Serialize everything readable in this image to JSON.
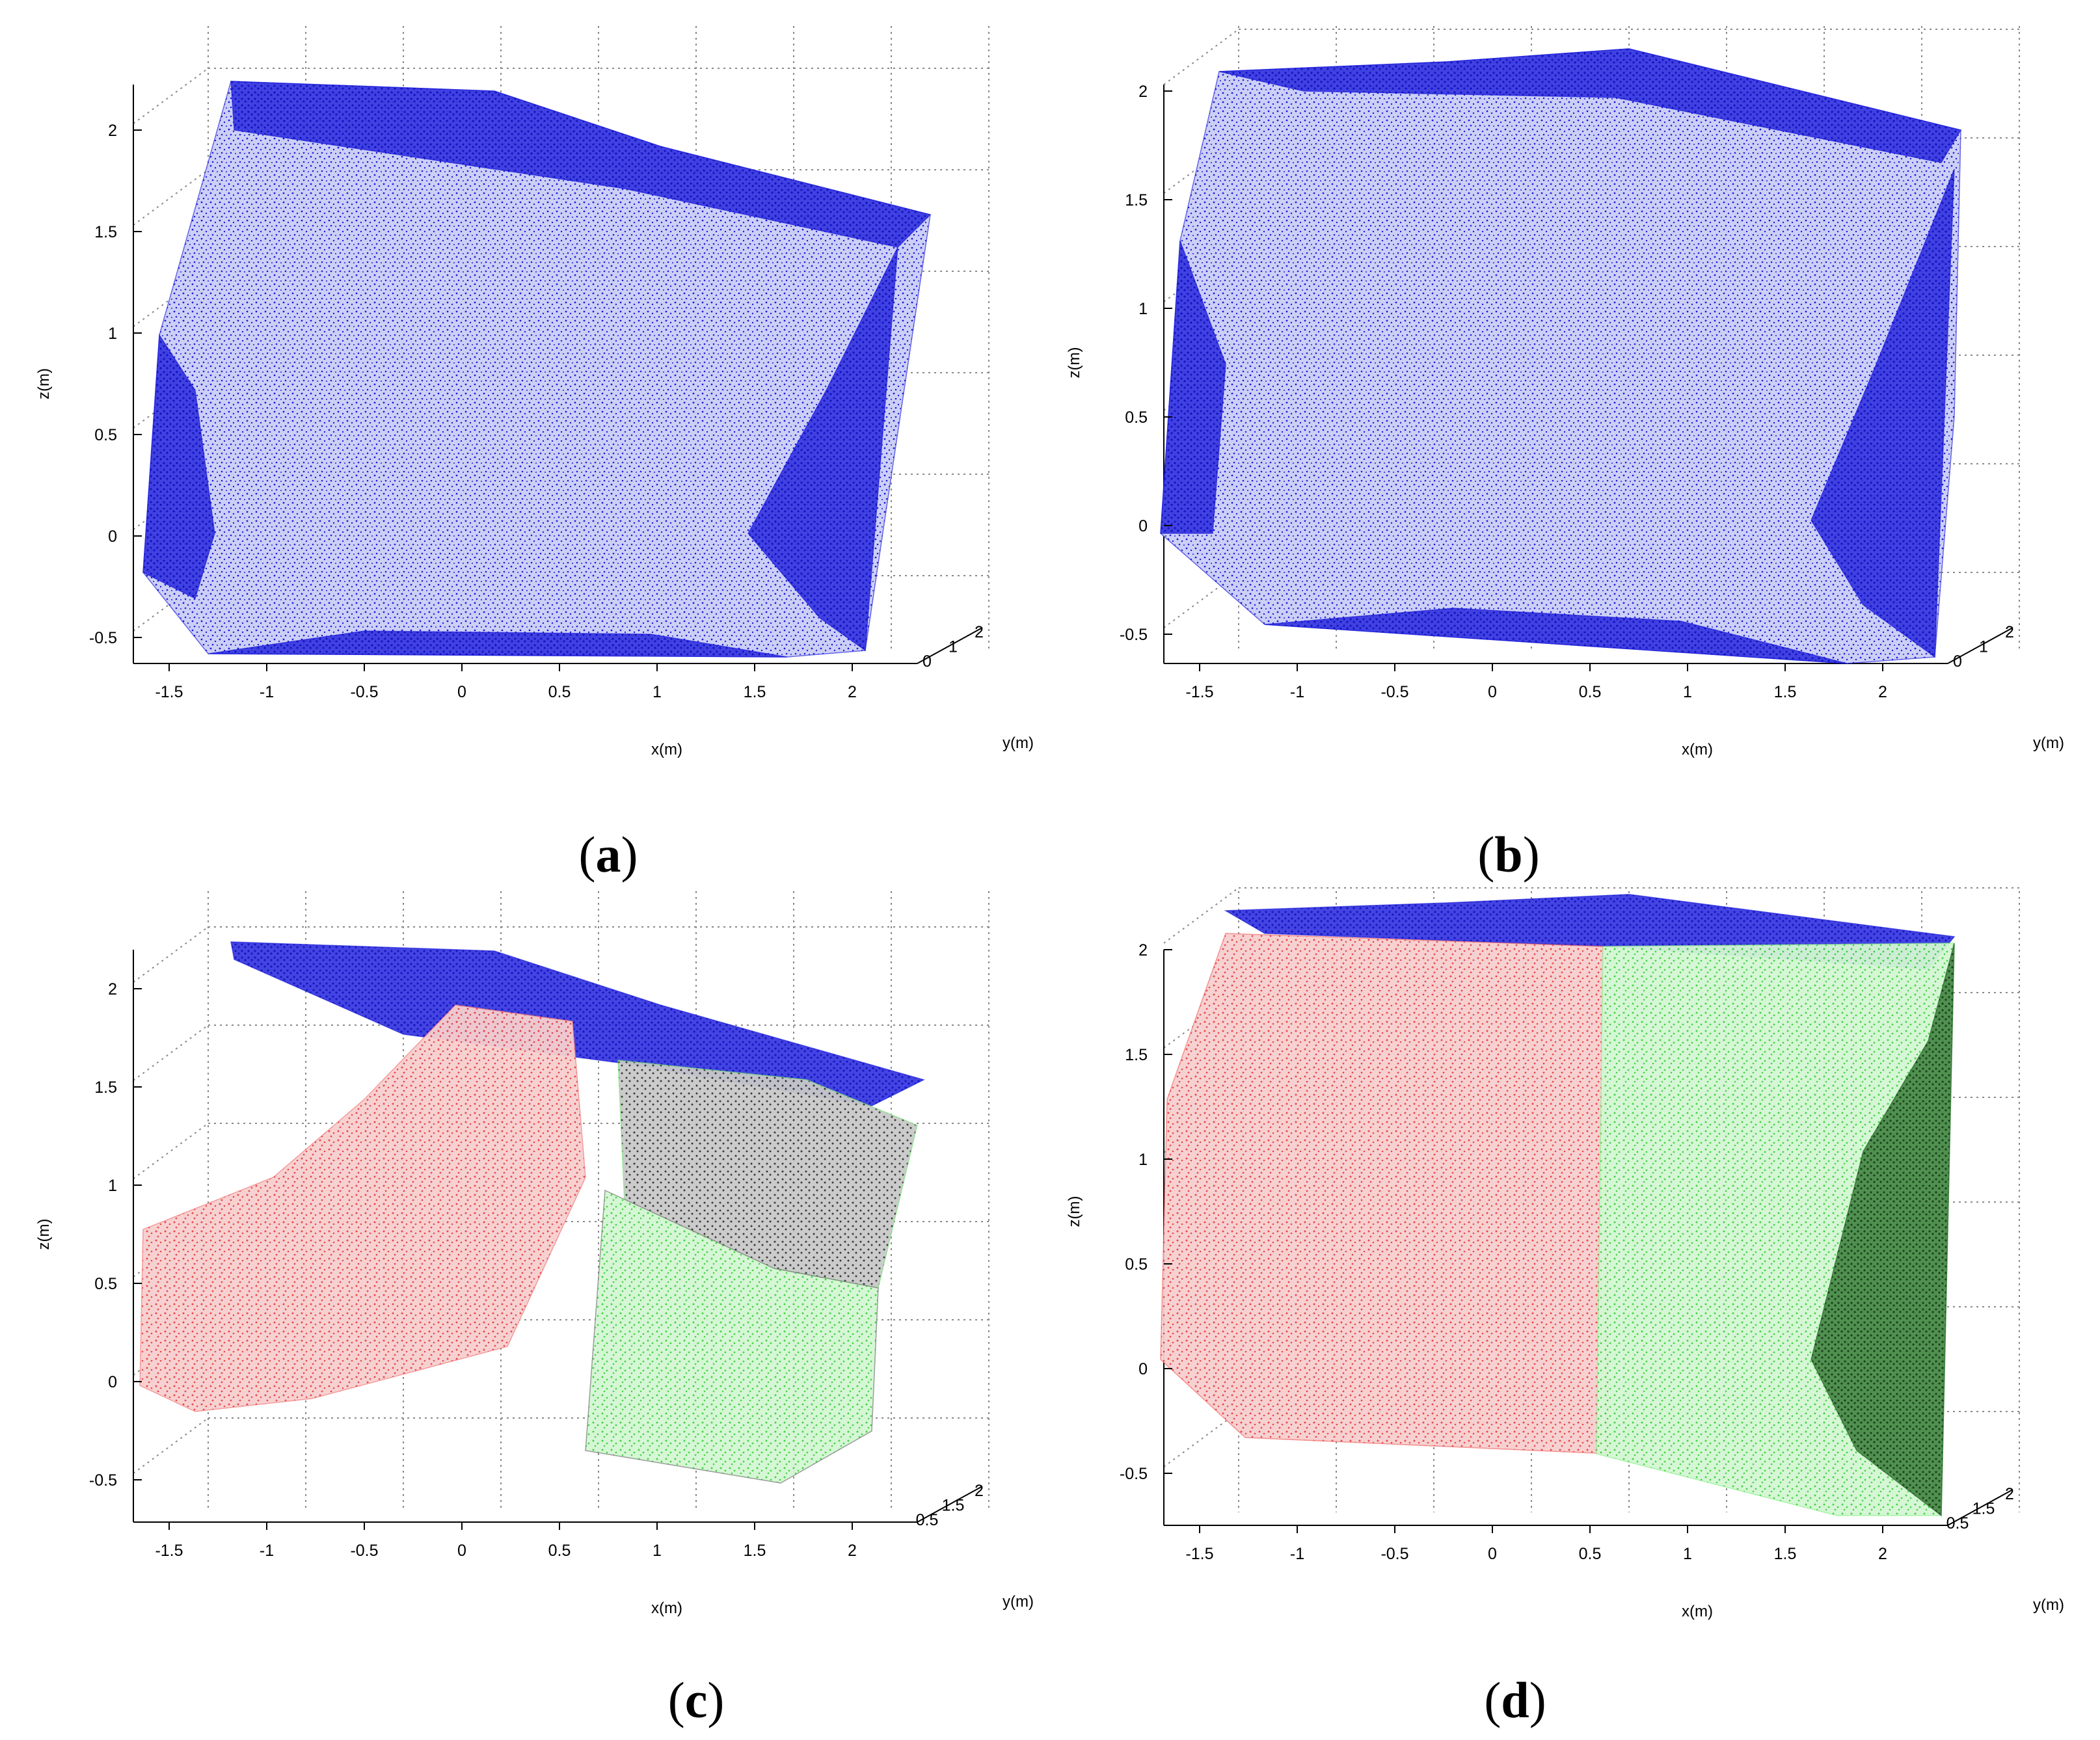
{
  "figure": {
    "panels": [
      {
        "caption_open": "(",
        "caption_letter": "a",
        "caption_close": ")",
        "xlabel": "x(m)",
        "ylabel": "y(m)",
        "zlabel": "z(m)",
        "x_ticks": [
          "-1.5",
          "-1",
          "-0.5",
          "0",
          "0.5",
          "1",
          "1.5",
          "2"
        ],
        "y_ticks": [
          "0",
          "1",
          "2"
        ],
        "z_ticks": [
          "-0.5",
          "0",
          "0.5",
          "1",
          "1.5",
          "2"
        ],
        "segments": [
          {
            "color": "#1010d8",
            "region": "full-room"
          }
        ]
      },
      {
        "caption_open": "(",
        "caption_letter": "b",
        "caption_close": ")",
        "xlabel": "x(m)",
        "ylabel": "y(m)",
        "zlabel": "z(m)",
        "x_ticks": [
          "-1.5",
          "-1",
          "-0.5",
          "0",
          "0.5",
          "1",
          "1.5",
          "2"
        ],
        "y_ticks": [
          "0",
          "1",
          "2"
        ],
        "z_ticks": [
          "-0.5",
          "0",
          "0.5",
          "1",
          "1.5",
          "2"
        ],
        "segments": [
          {
            "color": "#1010d8",
            "region": "full-room"
          }
        ]
      },
      {
        "caption_open": "(",
        "caption_letter": "c",
        "caption_close": ")",
        "xlabel": "x(m)",
        "ylabel": "y(m)",
        "zlabel": "z(m)",
        "x_ticks": [
          "-1.5",
          "-1",
          "-0.5",
          "0",
          "0.5",
          "1",
          "1.5",
          "2"
        ],
        "y_ticks": [
          "0.5",
          "1.5",
          "2"
        ],
        "z_ticks": [
          "-0.5",
          "0",
          "0.5",
          "1",
          "1.5",
          "2"
        ],
        "segments": [
          {
            "color": "#1010d8",
            "region": "ceiling"
          },
          {
            "color": "#f06a6a",
            "region": "left-wall-partial"
          },
          {
            "color": "#6ee86e",
            "region": "front-wall-partial"
          },
          {
            "color": "#606060",
            "region": "right-wall-partial"
          }
        ]
      },
      {
        "caption_open": "(",
        "caption_letter": "d",
        "caption_close": ")",
        "xlabel": "x(m)",
        "ylabel": "y(m)",
        "zlabel": "z(m)",
        "x_ticks": [
          "-1.5",
          "-1",
          "-0.5",
          "0",
          "0.5",
          "1",
          "1.5",
          "2"
        ],
        "y_ticks": [
          "0.5",
          "1.5",
          "2"
        ],
        "z_ticks": [
          "-0.5",
          "0",
          "0.5",
          "1",
          "1.5",
          "2"
        ],
        "segments": [
          {
            "color": "#1010d8",
            "region": "ceiling"
          },
          {
            "color": "#f05858",
            "region": "left-wall"
          },
          {
            "color": "#80ee80",
            "region": "front-wall"
          },
          {
            "color": "#1c5a1c",
            "region": "right-wall"
          }
        ]
      }
    ]
  },
  "chart_data": [
    {
      "type": "scatter",
      "title": "",
      "xlabel": "x(m)",
      "ylabel": "y(m)",
      "zlabel": "z(m)",
      "xlim": [
        -1.7,
        2.3
      ],
      "ylim": [
        0,
        2.5
      ],
      "zlim": [
        -0.7,
        2.3
      ],
      "grid": true,
      "series": [
        {
          "color": "#1010d8"
        }
      ]
    },
    {
      "type": "scatter",
      "title": "",
      "xlabel": "x(m)",
      "ylabel": "y(m)",
      "zlabel": "z(m)",
      "xlim": [
        -1.7,
        2.3
      ],
      "ylim": [
        0,
        2.5
      ],
      "zlim": [
        -0.7,
        2.3
      ],
      "grid": true,
      "series": [
        {
          "color": "#1010d8"
        }
      ]
    },
    {
      "type": "scatter",
      "title": "",
      "xlabel": "x(m)",
      "ylabel": "y(m)",
      "zlabel": "z(m)",
      "xlim": [
        -1.7,
        2.3
      ],
      "ylim": [
        0.5,
        2.2
      ],
      "zlim": [
        -0.7,
        2.3
      ],
      "grid": true,
      "series": [
        {
          "color": "#1010d8"
        },
        {
          "color": "#f06a6a"
        },
        {
          "color": "#6ee86e"
        },
        {
          "color": "#606060"
        }
      ]
    },
    {
      "type": "scatter",
      "title": "",
      "xlabel": "x(m)",
      "ylabel": "y(m)",
      "zlabel": "z(m)",
      "xlim": [
        -1.7,
        2.3
      ],
      "ylim": [
        0.5,
        2.2
      ],
      "zlim": [
        -0.7,
        2.3
      ],
      "grid": true,
      "series": [
        {
          "color": "#1010d8"
        },
        {
          "color": "#f05858"
        },
        {
          "color": "#80ee80"
        },
        {
          "color": "#1c5a1c"
        }
      ]
    }
  ]
}
